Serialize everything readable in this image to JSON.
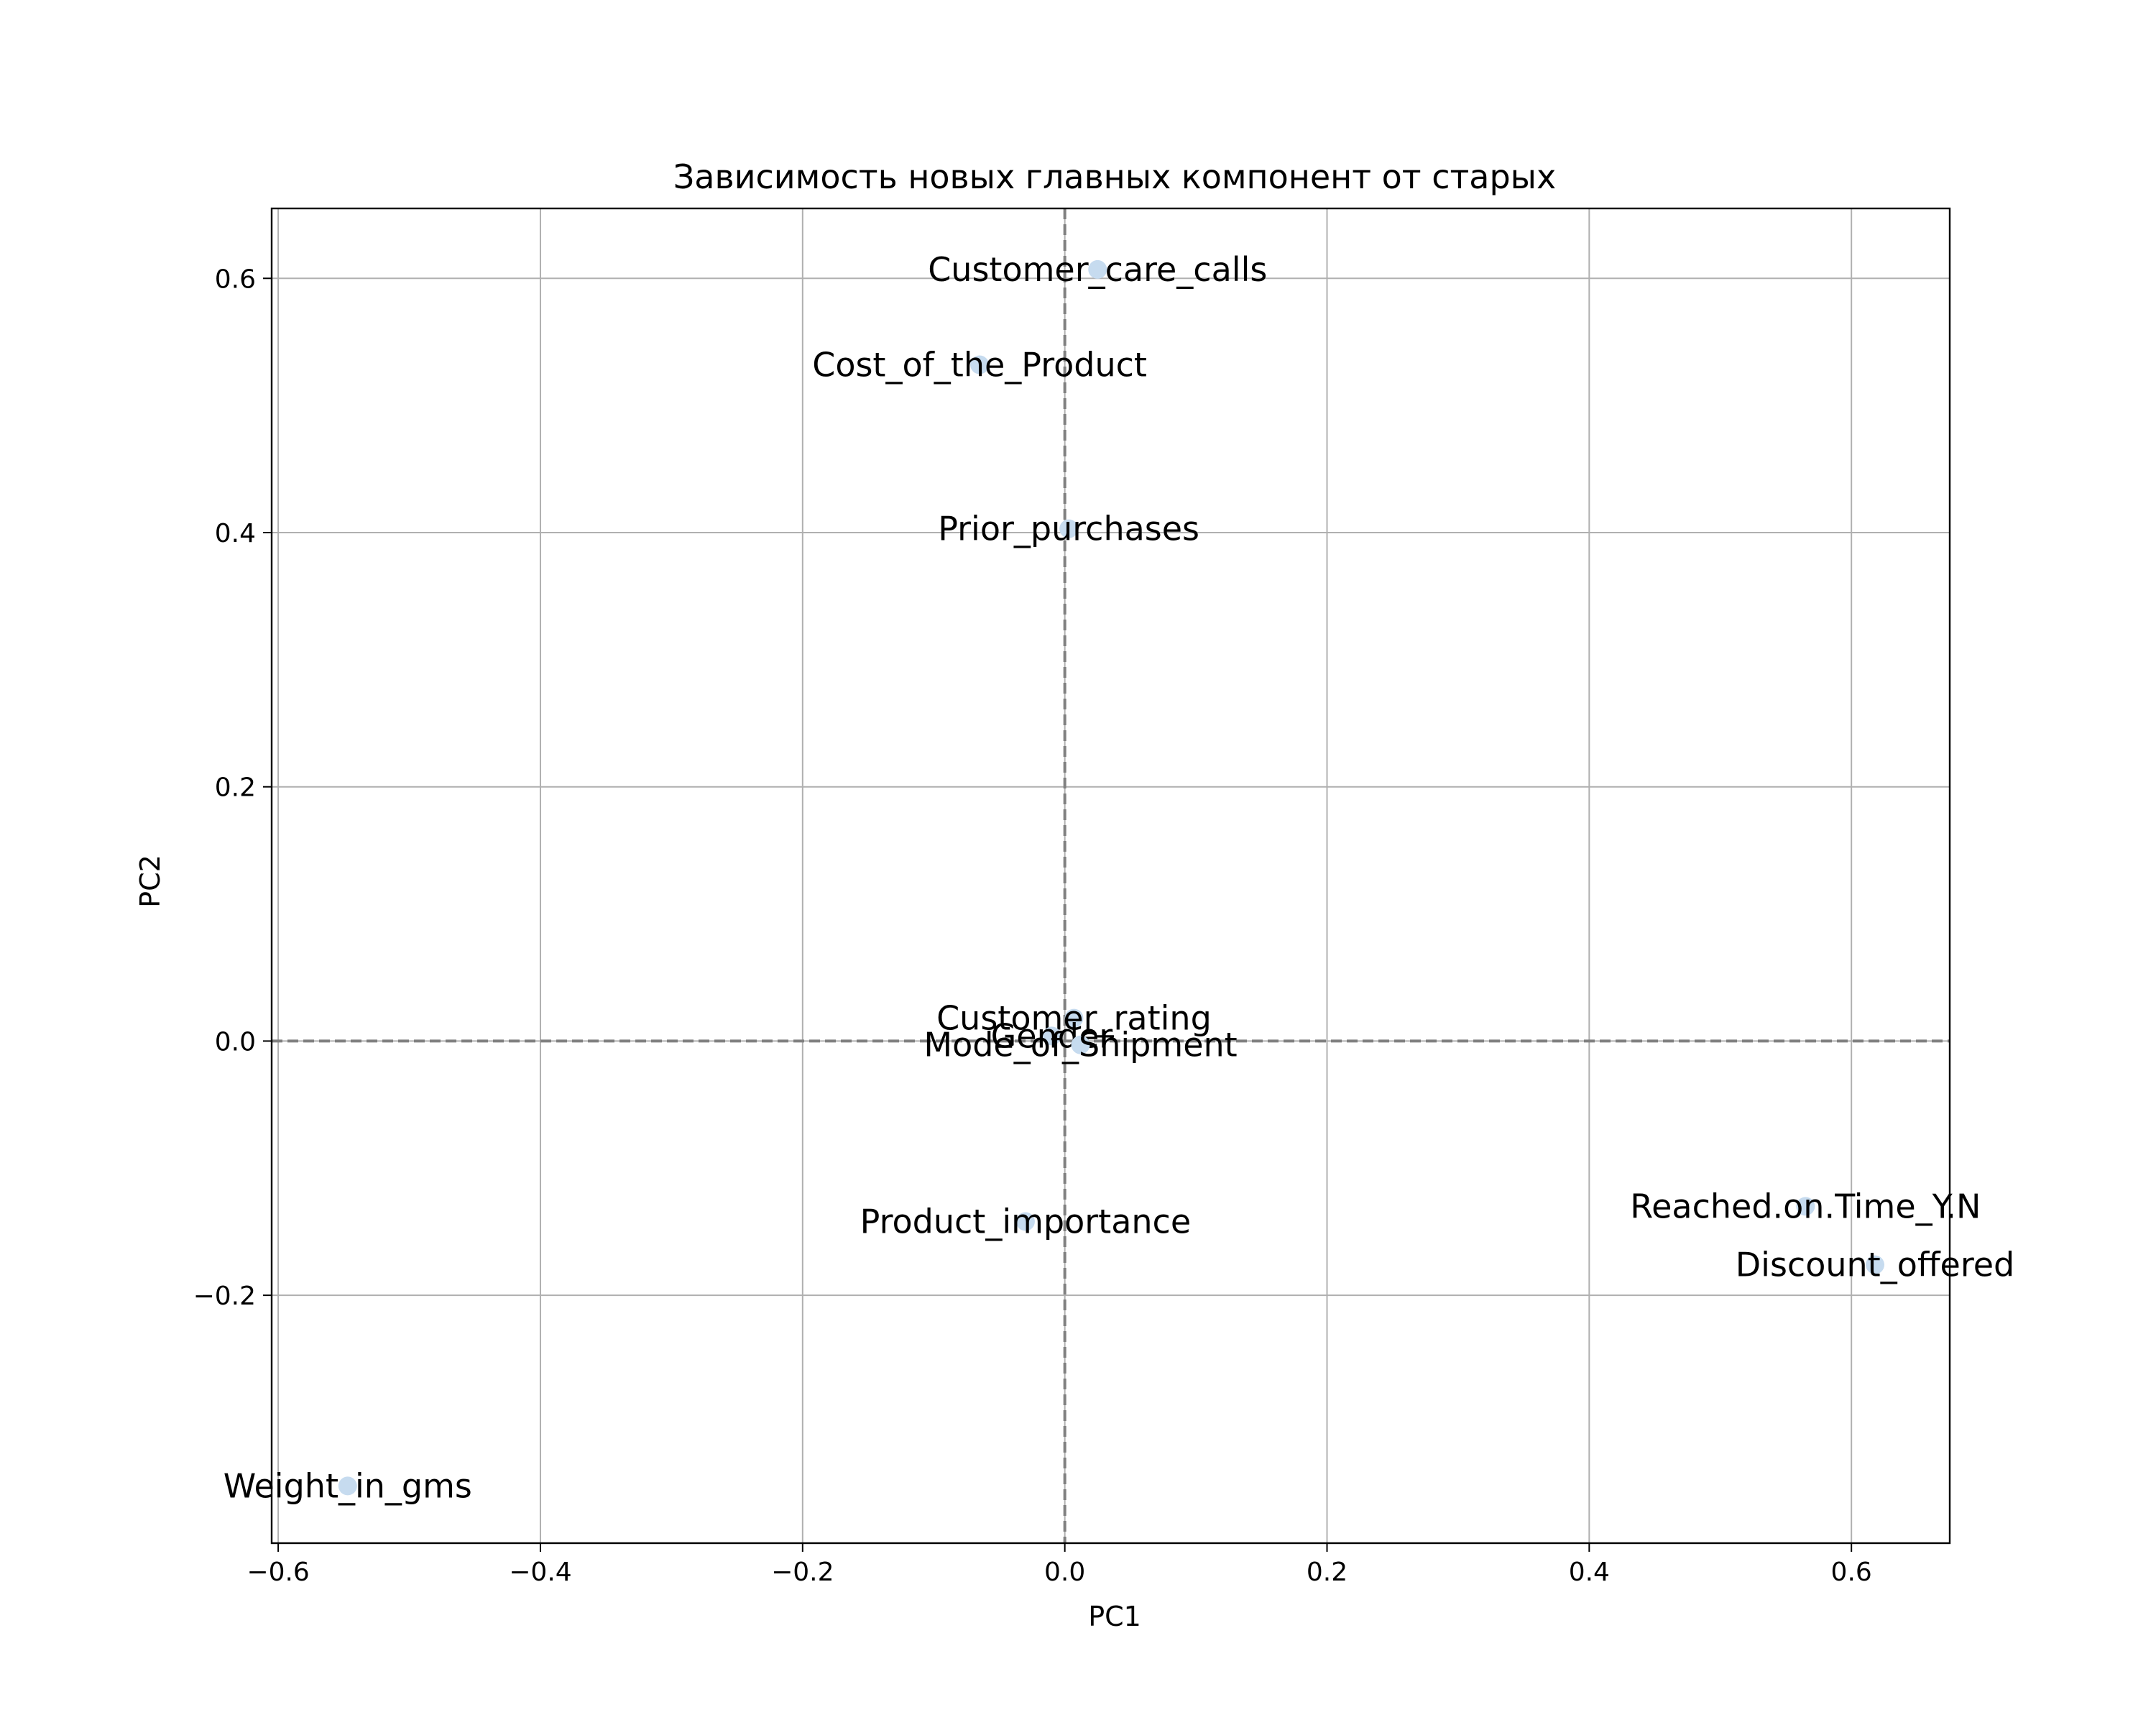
{
  "chart_data": {
    "type": "scatter",
    "title": "Зависимость новых главных компонент от старых",
    "xlabel": "PC1",
    "ylabel": "PC2",
    "xlim": [
      -0.605,
      0.675
    ],
    "ylim": [
      -0.395,
      0.655
    ],
    "xticks": [
      -0.6,
      -0.4,
      -0.2,
      0.0,
      0.2,
      0.4,
      0.6
    ],
    "yticks": [
      -0.2,
      0.0,
      0.2,
      0.4,
      0.6
    ],
    "xtick_labels": [
      "−0.6",
      "−0.4",
      "−0.2",
      "0.0",
      "0.2",
      "0.4",
      "0.6"
    ],
    "ytick_labels": [
      "−0.2",
      "0.0",
      "0.2",
      "0.4",
      "0.6"
    ],
    "grid": true,
    "reference_lines": {
      "x": 0.0,
      "y": 0.0,
      "style": "dashed",
      "color": "#808080"
    },
    "point_color": "#c6dbef",
    "points": [
      {
        "name": "Customer_care_calls",
        "x": 0.025,
        "y": 0.607
      },
      {
        "name": "Cost_of_the_Product",
        "x": -0.065,
        "y": 0.532
      },
      {
        "name": "Prior_purchases",
        "x": 0.003,
        "y": 0.403
      },
      {
        "name": "Customer_rating",
        "x": 0.007,
        "y": 0.018
      },
      {
        "name": "Gender",
        "x": -0.01,
        "y": 0.004
      },
      {
        "name": "Mode_of_Shipment",
        "x": 0.012,
        "y": -0.003
      },
      {
        "name": "Product_importance",
        "x": -0.03,
        "y": -0.142
      },
      {
        "name": "Reached.on.Time_Y.N",
        "x": 0.565,
        "y": -0.13
      },
      {
        "name": "Discount_offered",
        "x": 0.618,
        "y": -0.176
      },
      {
        "name": "Weight_in_gms",
        "x": -0.547,
        "y": -0.35
      }
    ]
  }
}
